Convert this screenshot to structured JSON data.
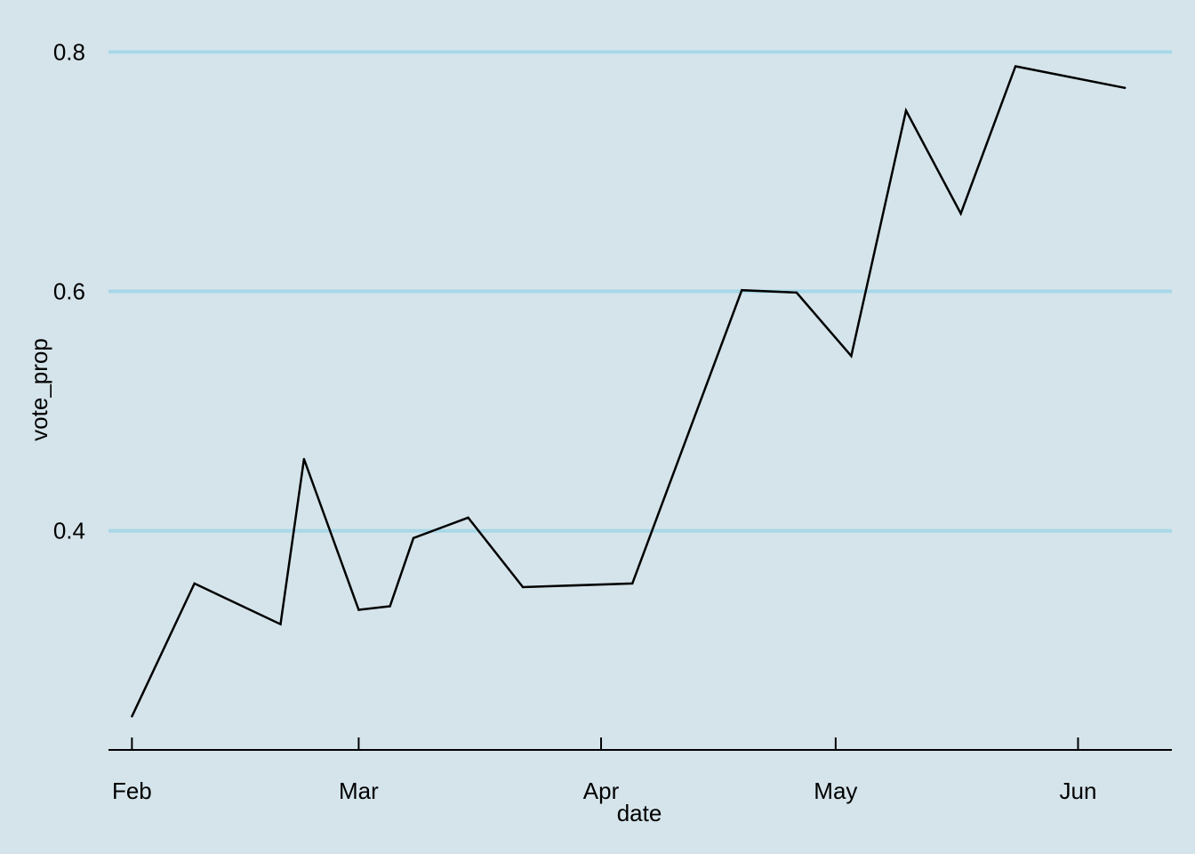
{
  "chart_data": {
    "type": "line",
    "title": "",
    "xlabel": "date",
    "ylabel": "vote_prop",
    "x_axis": {
      "type": "date",
      "range": [
        "2024-01-29",
        "2024-06-13"
      ],
      "ticks": [
        {
          "date": "2024-02-01",
          "label": "Feb"
        },
        {
          "date": "2024-03-01",
          "label": "Mar"
        },
        {
          "date": "2024-04-01",
          "label": "Apr"
        },
        {
          "date": "2024-05-01",
          "label": "May"
        },
        {
          "date": "2024-06-01",
          "label": "Jun"
        }
      ]
    },
    "y_axis": {
      "range": [
        0.217,
        0.83
      ],
      "ticks": [
        {
          "value": 0.4,
          "label": "0.4"
        },
        {
          "value": 0.6,
          "label": "0.6"
        },
        {
          "value": 0.8,
          "label": "0.8"
        }
      ]
    },
    "grid": {
      "horizontal": true,
      "vertical": false
    },
    "legend": "none",
    "colors": {
      "background": "#d5e4eb",
      "gridline": "#a8d8e8",
      "line": "#000000",
      "axis": "#000000"
    },
    "series": [
      {
        "points": [
          {
            "x": "2024-02-01",
            "y": 0.245
          },
          {
            "x": "2024-02-09",
            "y": 0.356
          },
          {
            "x": "2024-02-20",
            "y": 0.322
          },
          {
            "x": "2024-02-23",
            "y": 0.46
          },
          {
            "x": "2024-03-01",
            "y": 0.334
          },
          {
            "x": "2024-03-05",
            "y": 0.337
          },
          {
            "x": "2024-03-08",
            "y": 0.394
          },
          {
            "x": "2024-03-15",
            "y": 0.411
          },
          {
            "x": "2024-03-22",
            "y": 0.353
          },
          {
            "x": "2024-04-05",
            "y": 0.356
          },
          {
            "x": "2024-04-19",
            "y": 0.601
          },
          {
            "x": "2024-04-26",
            "y": 0.599
          },
          {
            "x": "2024-05-03",
            "y": 0.546
          },
          {
            "x": "2024-05-10",
            "y": 0.751
          },
          {
            "x": "2024-05-17",
            "y": 0.665
          },
          {
            "x": "2024-05-24",
            "y": 0.788
          },
          {
            "x": "2024-06-07",
            "y": 0.77
          }
        ]
      }
    ]
  }
}
